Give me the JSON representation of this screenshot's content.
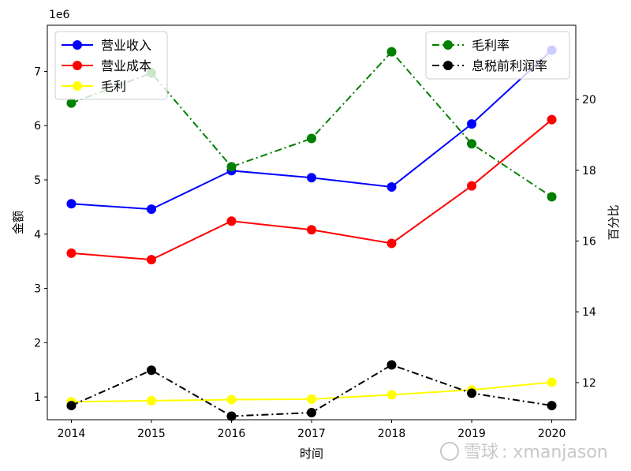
{
  "chart_data": {
    "type": "line",
    "x": [
      2014,
      2015,
      2016,
      2017,
      2018,
      2019,
      2020
    ],
    "xlabel": "时间",
    "ylabel_left": "金额",
    "ylabel_right": "百分比",
    "left_offset_label": "1e6",
    "ylim_left": [
      0.58,
      7.85
    ],
    "ylim_right": [
      10.95,
      22.1
    ],
    "left_ticks": [
      1,
      2,
      3,
      4,
      5,
      6,
      7
    ],
    "right_ticks": [
      12,
      14,
      16,
      18,
      20
    ],
    "xlim": [
      2013.7,
      2020.3
    ],
    "series_left": [
      {
        "name": "营业收入",
        "color": "#0000ff",
        "style": "solid",
        "values": [
          4.56,
          4.46,
          5.17,
          5.04,
          4.87,
          6.03,
          7.39
        ]
      },
      {
        "name": "营业成本",
        "color": "#ff0000",
        "style": "solid",
        "values": [
          3.65,
          3.53,
          4.24,
          4.08,
          3.83,
          4.89,
          6.11
        ]
      },
      {
        "name": "毛利",
        "color": "#ffff00",
        "style": "solid",
        "values": [
          0.91,
          0.93,
          0.95,
          0.96,
          1.04,
          1.13,
          1.27
        ]
      }
    ],
    "series_right": [
      {
        "name": "毛利率",
        "color": "#008000",
        "style": "dashdot",
        "values": [
          19.9,
          20.75,
          18.1,
          18.9,
          21.35,
          18.75,
          17.25
        ]
      },
      {
        "name": "息税前利润率",
        "color": "#000000",
        "style": "dashdot",
        "values": [
          11.35,
          12.35,
          11.05,
          11.15,
          12.5,
          11.7,
          11.35
        ]
      }
    ],
    "legend_left_position": "top-left",
    "legend_right_position": "top-right",
    "grid": false
  },
  "watermark": {
    "logo_text": "雪球",
    "handle_text": ": xmanjason"
  }
}
